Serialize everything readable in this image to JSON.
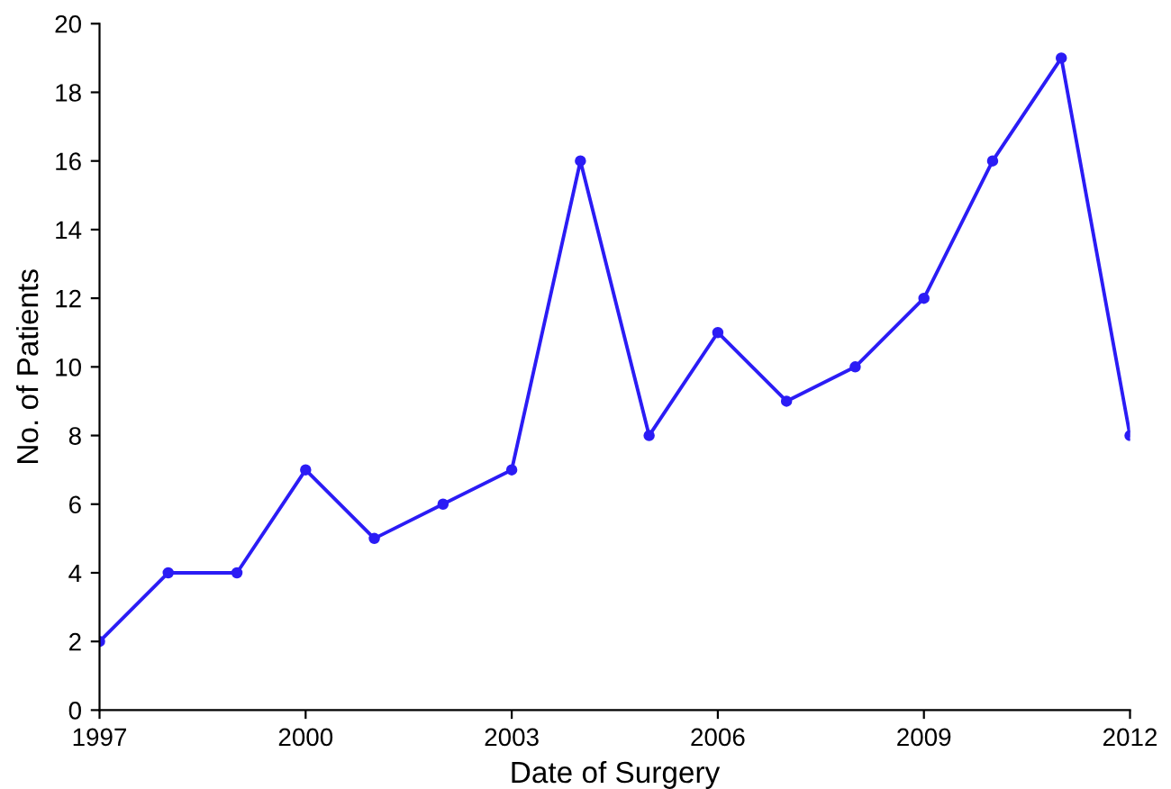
{
  "chart_data": {
    "type": "line",
    "xlabel": "Date of Surgery",
    "ylabel": "No. of Patients",
    "x": [
      1997,
      1998,
      1999,
      2000,
      2001,
      2002,
      2003,
      2004,
      2005,
      2006,
      2007,
      2008,
      2009,
      2010,
      2011,
      2012
    ],
    "series": [
      {
        "color": "#2b1cf5",
        "values": [
          2,
          4,
          4,
          7,
          5,
          6,
          7,
          16,
          8,
          11,
          9,
          10,
          12,
          16,
          19,
          8
        ]
      }
    ],
    "xlim": [
      1997,
      2012
    ],
    "xticks": [
      1997,
      2000,
      2003,
      2006,
      2009,
      2012
    ],
    "ylim": [
      0,
      20
    ],
    "yticks": [
      0,
      2,
      4,
      6,
      8,
      10,
      12,
      14,
      16,
      18,
      20
    ],
    "marker": "circle",
    "line_style": "solid",
    "grid": false,
    "legend": false
  }
}
